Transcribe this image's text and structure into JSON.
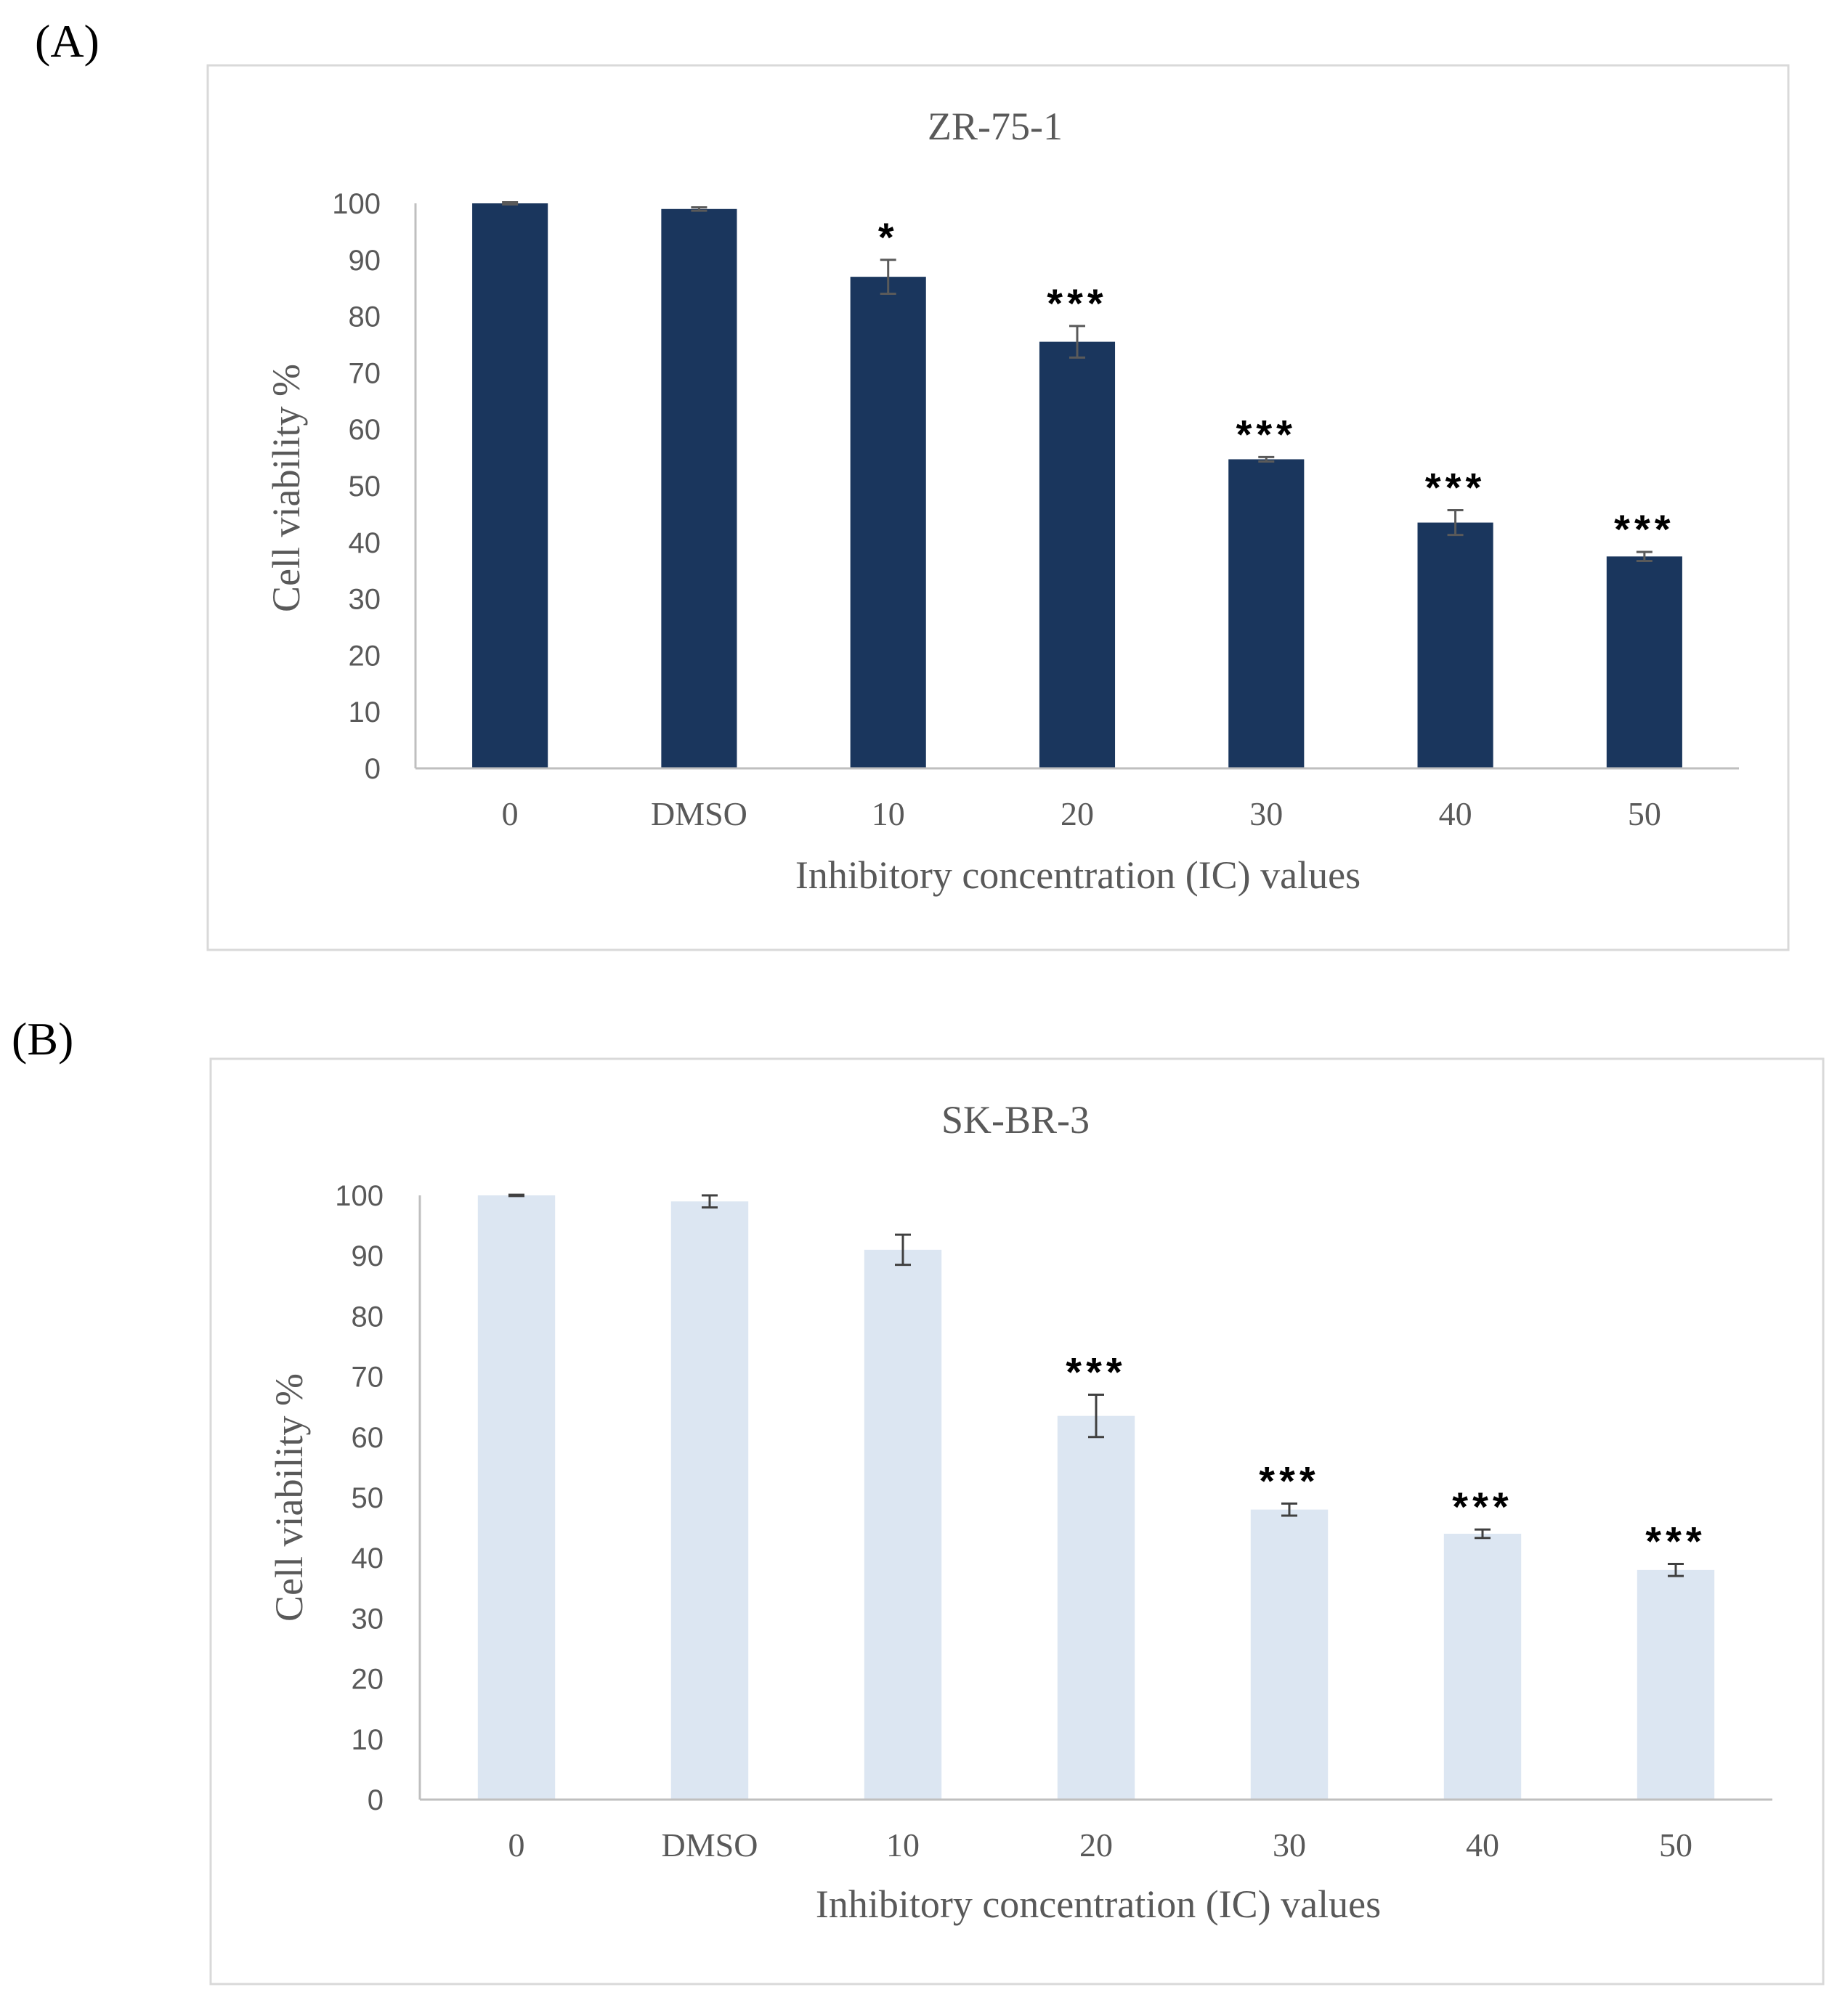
{
  "panels": [
    {
      "label": "(A)",
      "chart_data": {
        "type": "bar",
        "title": "ZR-75-1",
        "categories": [
          "0",
          "DMSO",
          "10",
          "20",
          "30",
          "40",
          "50"
        ],
        "values": [
          100,
          99,
          87,
          75.5,
          54.7,
          43.5,
          37.5
        ],
        "errors": [
          0.2,
          0.3,
          3,
          2.8,
          0.4,
          2.2,
          0.8
        ],
        "significance": [
          "",
          "",
          "*",
          "***",
          "***",
          "***",
          "***"
        ],
        "xlabel": "Inhibitory concentration (IC) values",
        "ylabel": "Cell viability %",
        "ylim": [
          0,
          100
        ],
        "yticks": [
          0,
          10,
          20,
          30,
          40,
          50,
          60,
          70,
          80,
          90,
          100
        ],
        "bar_color": "#1a365d",
        "error_color": "#5a5a5a"
      }
    },
    {
      "label": "(B)",
      "chart_data": {
        "type": "bar",
        "title": "SK-BR-3",
        "categories": [
          "0",
          "DMSO",
          "10",
          "20",
          "30",
          "40",
          "50"
        ],
        "values": [
          100,
          99,
          91,
          63.5,
          48,
          44,
          38
        ],
        "errors": [
          0.1,
          1,
          2.5,
          3.5,
          1,
          0.7,
          1
        ],
        "significance": [
          "",
          "",
          "",
          "***",
          "***",
          "***",
          "***"
        ],
        "xlabel": "Inhibitory concentration (IC) values",
        "ylabel": "Cell viability %",
        "ylim": [
          0,
          100
        ],
        "yticks": [
          0,
          10,
          20,
          30,
          40,
          50,
          60,
          70,
          80,
          90,
          100
        ],
        "bar_color": "#dce6f2",
        "error_color": "#404040"
      }
    }
  ]
}
